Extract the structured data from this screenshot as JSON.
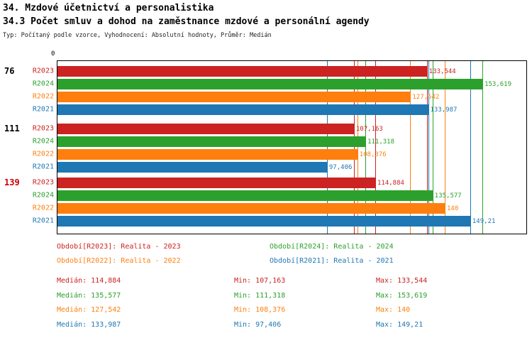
{
  "header": {
    "title": "34. Mzdové účetnictví a personalistika",
    "subtitle": "34.3 Počet smluv a dohod na zaměstnance mzdové a personální agendy",
    "meta": "Typ: Počítaný podle vzorce, Vyhodnocení: Absolutní hodnoty, Průměr: Medián"
  },
  "chart_data": {
    "type": "bar",
    "orientation": "horizontal",
    "title": "34.3 Počet smluv a dohod na zaměstnance mzdové a personální agendy",
    "axis_origin_label": "0",
    "xlim": [
      0,
      170
    ],
    "grid": false,
    "categories": [
      "76",
      "111",
      "139"
    ],
    "category_label_colors": [
      "#000000",
      "#000000",
      "#cc0000"
    ],
    "series": [
      {
        "name": "R2023",
        "color": "#cc2222",
        "values": [
          133.544,
          107.163,
          114.884
        ],
        "displays": [
          "133,544",
          "107,163",
          "114,884"
        ]
      },
      {
        "name": "R2024",
        "color": "#2ca02c",
        "values": [
          153.619,
          111.318,
          135.577
        ],
        "displays": [
          "153,619",
          "111,318",
          "135,577"
        ]
      },
      {
        "name": "R2022",
        "color": "#ff7f0e",
        "values": [
          127.542,
          108.376,
          140
        ],
        "displays": [
          "127,542",
          "108,376",
          "140"
        ]
      },
      {
        "name": "R2021",
        "color": "#1f77b4",
        "values": [
          133.987,
          97.406,
          149.21
        ],
        "displays": [
          "133,987",
          "97,406",
          "149,21"
        ]
      }
    ],
    "legend": [
      {
        "text": "Období[R2023]: Realita - 2023",
        "color": "#cc2222"
      },
      {
        "text": "Období[R2024]: Realita - 2024",
        "color": "#2ca02c"
      },
      {
        "text": "Období[R2022]: Realita - 2022",
        "color": "#ff7f0e"
      },
      {
        "text": "Období[R2021]: Realita - 2021",
        "color": "#1f77b4"
      }
    ],
    "stats": [
      {
        "series": "R2023",
        "color": "#cc2222",
        "median": "Medián: 114,884",
        "min": "Min: 107,163",
        "max": "Max: 133,544"
      },
      {
        "series": "R2024",
        "color": "#2ca02c",
        "median": "Medián: 135,577",
        "min": "Min: 111,318",
        "max": "Max: 153,619"
      },
      {
        "series": "R2022",
        "color": "#ff7f0e",
        "median": "Medián: 127,542",
        "min": "Min: 108,376",
        "max": "Max: 140"
      },
      {
        "series": "R2021",
        "color": "#1f77b4",
        "median": "Medián: 133,987",
        "min": "Min: 97,406",
        "max": "Max: 149,21"
      }
    ]
  }
}
